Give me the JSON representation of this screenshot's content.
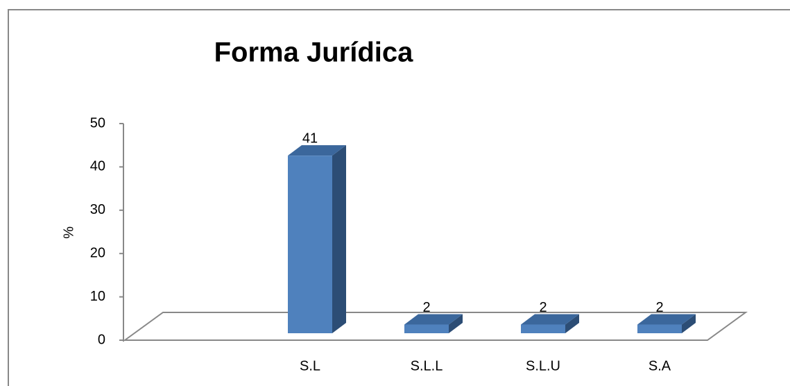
{
  "chart_data": {
    "type": "bar3d",
    "title": "Forma Jurídica",
    "y_label": "%",
    "categories": [
      null,
      "S.L",
      "S.L.L",
      "S.L.U",
      "S.A"
    ],
    "values": [
      null,
      41,
      2,
      2,
      2
    ],
    "color": "#4f81bd",
    "ylim": [
      0,
      50
    ],
    "yticks": [
      0,
      10,
      20,
      30,
      40,
      50
    ]
  }
}
